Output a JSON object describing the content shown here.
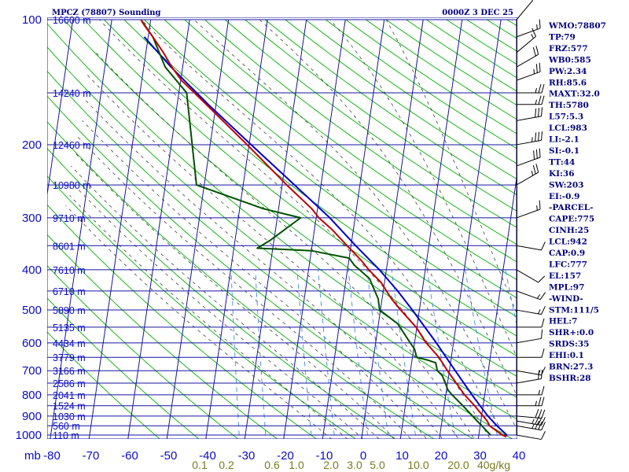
{
  "header": {
    "left_title": "MPCZ (78807) Sounding",
    "right_title": "0000Z  3 DEC 25"
  },
  "indices": [
    "WMO:78807",
    "TP:79",
    "FRZ:577",
    "WB0:585",
    "PW:2.34",
    "RH:85.6",
    "MAXT:32.0",
    "TH:5780",
    "L57:5.3",
    "LCL:983",
    "LI:-2.1",
    "SI:-0.1",
    "TT:44",
    "KI:36",
    "SW:203",
    "EI:-0.9",
    "-PARCEL-",
    "CAPE:775",
    "CINH:25",
    "LCL:942",
    "CAP:0.9",
    "LFC:777",
    "EL:157",
    "MPL:97",
    "-WIND-",
    "STM:111/5",
    "HEL:7",
    "SHR+:0.0",
    "SRDS:35",
    "EHI:0.1",
    "BRN:27.3",
    "BSHR:28"
  ],
  "colors": {
    "isobar": "#1414a0",
    "isotherm": "#1414a0",
    "dry_adiabat": "#00b000",
    "moist_adiabat": "#404040",
    "mixing_ratio": "#3c8cdc",
    "temperature": "#c00000",
    "dewpoint": "#005000",
    "parcel": "#0000c8",
    "pressure_label": "#0a0ad0",
    "mixing_label": "#7a7a20"
  },
  "chart_data": {
    "type": "skew-t",
    "title": "MPCZ (78807) Sounding",
    "pressure_unit_label": "mb",
    "pressure_levels": [
      100,
      200,
      300,
      400,
      500,
      600,
      700,
      800,
      900,
      1000
    ],
    "temperature_ticks": [
      -80,
      -70,
      -60,
      -50,
      -40,
      -30,
      -20,
      -10,
      0,
      10,
      20,
      30,
      40
    ],
    "temperature_tick_labels": [
      "-80",
      "-70",
      "-60",
      "-50",
      "-40",
      "-30",
      "-20",
      "-10",
      "0",
      "10",
      "20",
      "30",
      "40"
    ],
    "mixing_ratio_labels": [
      "0.1",
      "0.2",
      "0.6",
      "1.0",
      "2.0",
      "3.0",
      "5.0",
      "10.0",
      "20.0",
      "40g/kg"
    ],
    "mixing_ratio_values": [
      0.1,
      0.2,
      0.6,
      1.0,
      2.0,
      3.0,
      5.0,
      10.0,
      20.0,
      40.0
    ],
    "height_labels": [
      {
        "p": 100,
        "label": "16600 m"
      },
      {
        "p": 150,
        "label": "14240 m"
      },
      {
        "p": 200,
        "label": "12460 m"
      },
      {
        "p": 250,
        "label": "10980 m"
      },
      {
        "p": 300,
        "label": "9710 m"
      },
      {
        "p": 350,
        "label": "8601 m"
      },
      {
        "p": 400,
        "label": "7610 m"
      },
      {
        "p": 450,
        "label": "6710 m"
      },
      {
        "p": 500,
        "label": "5890 m"
      },
      {
        "p": 550,
        "label": "5135 m"
      },
      {
        "p": 600,
        "label": "4434 m"
      },
      {
        "p": 650,
        "label": "3779 m"
      },
      {
        "p": 700,
        "label": "3166 m"
      },
      {
        "p": 750,
        "label": "2586 m"
      },
      {
        "p": 800,
        "label": "2041 m"
      },
      {
        "p": 850,
        "label": "1524 m"
      },
      {
        "p": 900,
        "label": "1030 m"
      },
      {
        "p": 950,
        "label": "560 m"
      },
      {
        "p": 1000,
        "label": "110 m"
      }
    ],
    "temperature": [
      {
        "p": 1008,
        "t": 27.2
      },
      {
        "p": 1000,
        "t": 26.0
      },
      {
        "p": 950,
        "t": 22.4
      },
      {
        "p": 925,
        "t": 21.6
      },
      {
        "p": 850,
        "t": 17.8
      },
      {
        "p": 800,
        "t": 14.8
      },
      {
        "p": 700,
        "t": 9.5
      },
      {
        "p": 650,
        "t": 6.8
      },
      {
        "p": 600,
        "t": 3.0
      },
      {
        "p": 550,
        "t": -0.2
      },
      {
        "p": 500,
        "t": -4.8
      },
      {
        "p": 470,
        "t": -7.6
      },
      {
        "p": 430,
        "t": -10.8
      },
      {
        "p": 400,
        "t": -14.5
      },
      {
        "p": 380,
        "t": -16.8
      },
      {
        "p": 350,
        "t": -21.0
      },
      {
        "p": 320,
        "t": -25.5
      },
      {
        "p": 300,
        "t": -29.3
      },
      {
        "p": 285,
        "t": -31.5
      },
      {
        "p": 250,
        "t": -38.8
      },
      {
        "p": 200,
        "t": -50.5
      },
      {
        "p": 150,
        "t": -66.0
      },
      {
        "p": 140,
        "t": -69.8
      },
      {
        "p": 130,
        "t": -72.8
      },
      {
        "p": 120,
        "t": -75.5
      },
      {
        "p": 110,
        "t": -78.8
      },
      {
        "p": 103,
        "t": -81.5
      },
      {
        "p": 100,
        "t": -82.5
      }
    ],
    "dewpoint": [
      {
        "p": 1000,
        "t": 23.0
      },
      {
        "p": 950,
        "t": 20.4
      },
      {
        "p": 925,
        "t": 19.0
      },
      {
        "p": 850,
        "t": 14.8
      },
      {
        "p": 800,
        "t": 11.6
      },
      {
        "p": 780,
        "t": 10.4
      },
      {
        "p": 720,
        "t": 8.4
      },
      {
        "p": 700,
        "t": 6.9
      },
      {
        "p": 670,
        "t": 6.2
      },
      {
        "p": 660,
        "t": 4.0
      },
      {
        "p": 650,
        "t": 1.1
      },
      {
        "p": 620,
        "t": 0.2
      },
      {
        "p": 600,
        "t": -1.1
      },
      {
        "p": 540,
        "t": -5.0
      },
      {
        "p": 500,
        "t": -10.2
      },
      {
        "p": 470,
        "t": -11.0
      },
      {
        "p": 420,
        "t": -14.0
      },
      {
        "p": 390,
        "t": -18.4
      },
      {
        "p": 375,
        "t": -20.0
      },
      {
        "p": 360,
        "t": -30.0
      },
      {
        "p": 355,
        "t": -44.0
      },
      {
        "p": 340,
        "t": -41.0
      },
      {
        "p": 300,
        "t": -34.0
      },
      {
        "p": 285,
        "t": -44.0
      },
      {
        "p": 250,
        "t": -62.0
      },
      {
        "p": 150,
        "t": -68.0
      },
      {
        "p": 130,
        "t": -74.5
      },
      {
        "p": 110,
        "t": -78.8
      },
      {
        "p": 100,
        "t": -82.5
      }
    ],
    "parcel": [
      {
        "p": 1000,
        "t": 27.2
      },
      {
        "p": 950,
        "t": 24.3
      },
      {
        "p": 900,
        "t": 21.6
      },
      {
        "p": 850,
        "t": 19.2
      },
      {
        "p": 800,
        "t": 16.7
      },
      {
        "p": 700,
        "t": 11.5
      },
      {
        "p": 600,
        "t": 5.6
      },
      {
        "p": 500,
        "t": -1.8
      },
      {
        "p": 450,
        "t": -6.3
      },
      {
        "p": 400,
        "t": -11.8
      },
      {
        "p": 350,
        "t": -18.8
      },
      {
        "p": 300,
        "t": -26.5
      },
      {
        "p": 250,
        "t": -36.8
      },
      {
        "p": 200,
        "t": -49.5
      },
      {
        "p": 160,
        "t": -62.0
      },
      {
        "p": 130,
        "t": -73.0
      },
      {
        "p": 110,
        "t": -81.0
      }
    ],
    "winds": [
      {
        "p": 1000,
        "dir": 100,
        "spd": 10
      },
      {
        "p": 950,
        "dir": 100,
        "spd": 35
      },
      {
        "p": 925,
        "dir": 100,
        "spd": 35
      },
      {
        "p": 900,
        "dir": 95,
        "spd": 30
      },
      {
        "p": 850,
        "dir": 90,
        "spd": 25
      },
      {
        "p": 800,
        "dir": 90,
        "spd": 15
      },
      {
        "p": 750,
        "dir": 80,
        "spd": 20
      },
      {
        "p": 700,
        "dir": 100,
        "spd": 15
      },
      {
        "p": 650,
        "dir": 90,
        "spd": 10
      },
      {
        "p": 600,
        "dir": 80,
        "spd": 10
      },
      {
        "p": 550,
        "dir": 90,
        "spd": 10
      },
      {
        "p": 500,
        "dir": 100,
        "spd": 15
      },
      {
        "p": 450,
        "dir": 110,
        "spd": 15
      },
      {
        "p": 400,
        "dir": 120,
        "spd": 10
      },
      {
        "p": 350,
        "dir": 100,
        "spd": 10
      },
      {
        "p": 300,
        "dir": 70,
        "spd": 15
      },
      {
        "p": 250,
        "dir": 60,
        "spd": 25
      },
      {
        "p": 225,
        "dir": 70,
        "spd": 30
      },
      {
        "p": 200,
        "dir": 80,
        "spd": 35
      },
      {
        "p": 175,
        "dir": 80,
        "spd": 30
      },
      {
        "p": 160,
        "dir": 90,
        "spd": 25
      },
      {
        "p": 150,
        "dir": 90,
        "spd": 25
      },
      {
        "p": 140,
        "dir": 70,
        "spd": 25
      },
      {
        "p": 130,
        "dir": 60,
        "spd": 20
      },
      {
        "p": 120,
        "dir": 50,
        "spd": 15
      },
      {
        "p": 110,
        "dir": 70,
        "spd": 15
      },
      {
        "p": 100,
        "dir": 40,
        "spd": 10
      }
    ]
  }
}
